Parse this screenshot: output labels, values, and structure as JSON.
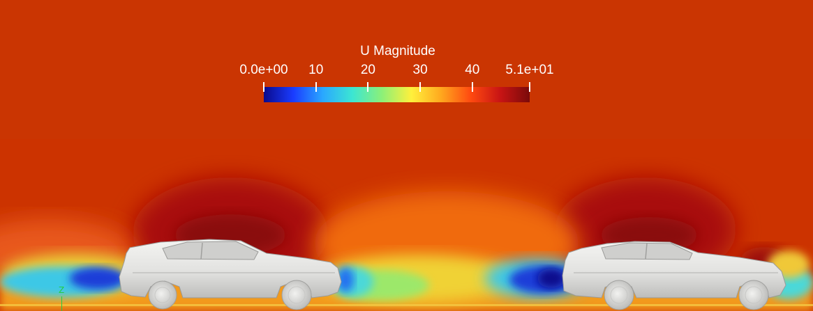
{
  "colorbar": {
    "title": "U Magnitude",
    "tick_labels": [
      "0.0e+00",
      "10",
      "20",
      "30",
      "40",
      "5.1e+01"
    ],
    "range": [
      0,
      51
    ],
    "colormap": [
      "#0a0a8c",
      "#1a3cff",
      "#2aa8ff",
      "#3ce6d2",
      "#8cf078",
      "#fff03c",
      "#ffa81e",
      "#ff4a10",
      "#c81414",
      "#7a0a0a"
    ]
  },
  "axes_widget": {
    "label": "Z",
    "color": "#22cc44"
  },
  "colors": {
    "freestream": "#cc3300",
    "car_body": "#e8e8e6",
    "ground": "#f7b21c"
  },
  "scene": {
    "vehicles": [
      "car-lead",
      "car-trailing"
    ]
  }
}
